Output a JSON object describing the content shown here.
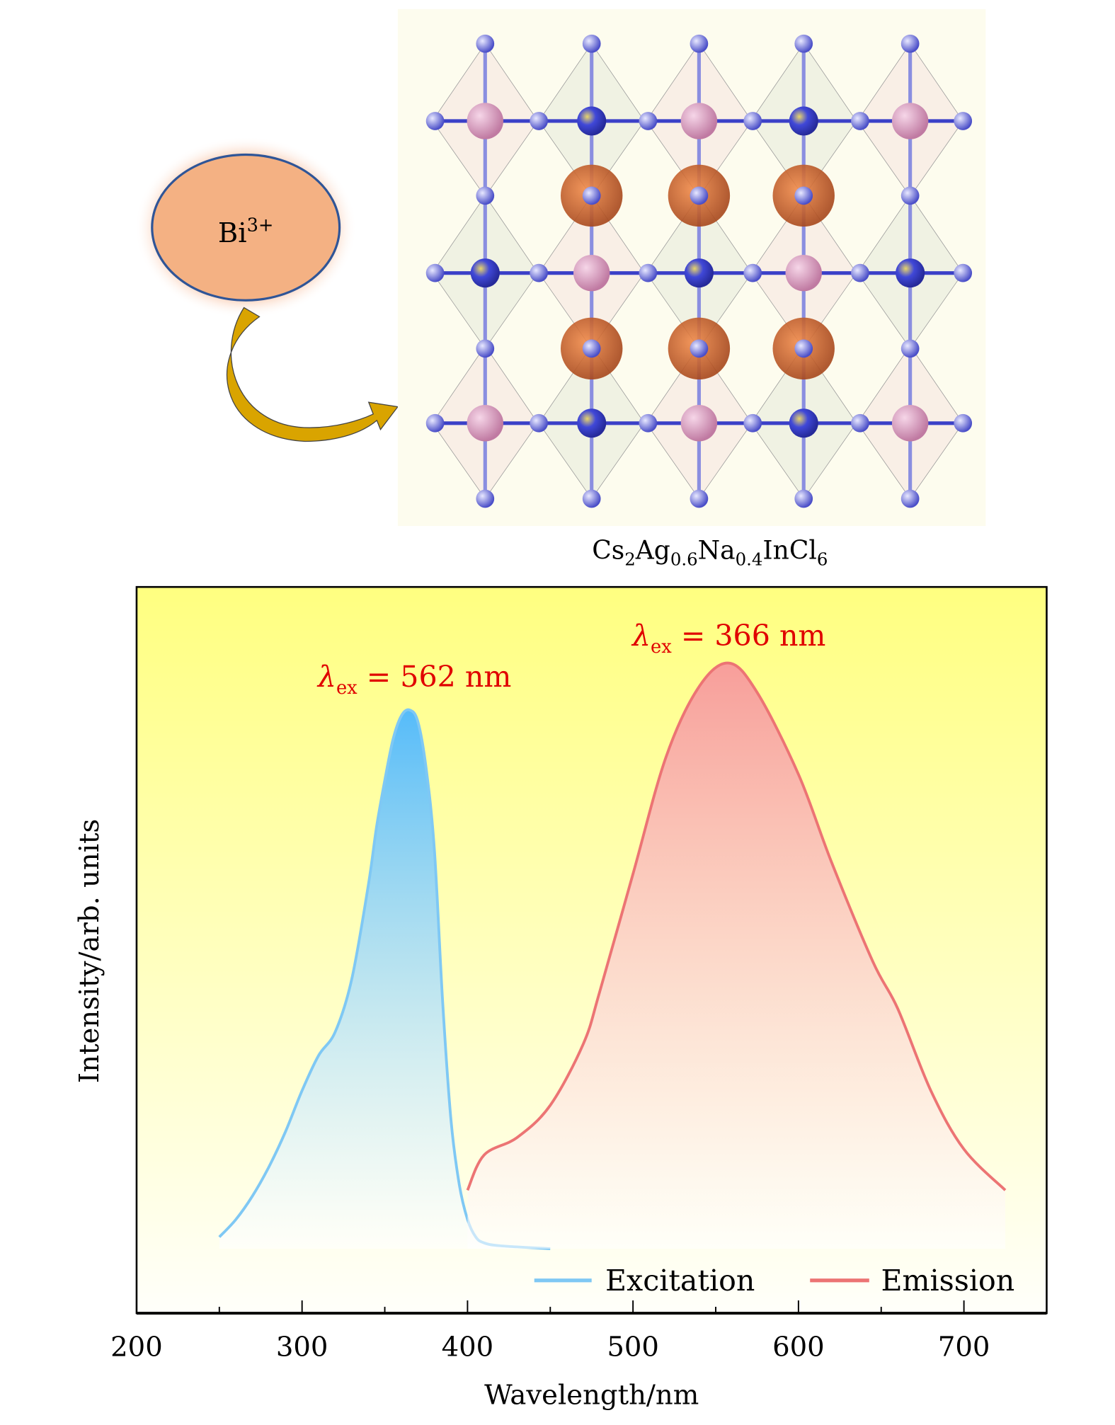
{
  "schematic": {
    "ion_label": {
      "base": "Bi",
      "sup": "3+"
    },
    "formula": [
      {
        "t": "Cs",
        "sub": false
      },
      {
        "t": "2",
        "sub": true
      },
      {
        "t": "Ag",
        "sub": false
      },
      {
        "t": "0.6",
        "sub": true
      },
      {
        "t": "Na",
        "sub": false
      },
      {
        "t": "0.4",
        "sub": true
      },
      {
        "t": "InCl",
        "sub": false
      },
      {
        "t": "6",
        "sub": true
      }
    ],
    "colors": {
      "ion_fill": "#f4b183",
      "ion_stroke": "#2f5597",
      "arrow": "#d9a400",
      "panel_bg": "#fdfcee",
      "cl_atom": "#6a6ee0",
      "in_atom": "#d68fb4",
      "cs_atom": "#d9652c",
      "ag_atom": "#3a3fd0"
    }
  },
  "chart_data": {
    "type": "area",
    "title": "",
    "xlabel": "Wavelength/nm",
    "ylabel": "Intensity/arb. units",
    "xlim": [
      200,
      750
    ],
    "ylim": [
      -0.11,
      1.13
    ],
    "xticks": [
      200,
      300,
      400,
      500,
      600,
      700
    ],
    "xtick_labels": [
      "200",
      "300",
      "400",
      "500",
      "600",
      "700"
    ],
    "minor_xticks": [
      250,
      350,
      450,
      550,
      650
    ],
    "yticks_shown": false,
    "grid": false,
    "legend": {
      "placement": "bottom-right",
      "entries": [
        "Excitation",
        "Emission"
      ]
    },
    "series": [
      {
        "name": "Excitation",
        "color": "#7fc8f4",
        "fill_top": "#4db8ff",
        "x": [
          250,
          260,
          270,
          280,
          290,
          300,
          310,
          320,
          330,
          340,
          345,
          350,
          355,
          360,
          365,
          370,
          375,
          380,
          385,
          390,
          395,
          400,
          405,
          410,
          420,
          450
        ],
        "y": [
          0.02,
          0.05,
          0.09,
          0.14,
          0.2,
          0.27,
          0.33,
          0.37,
          0.46,
          0.62,
          0.72,
          0.8,
          0.87,
          0.91,
          0.92,
          0.9,
          0.82,
          0.68,
          0.42,
          0.22,
          0.11,
          0.05,
          0.02,
          0.01,
          0.005,
          0.0
        ]
      },
      {
        "name": "Emission",
        "color": "#ec7474",
        "fill_top": "#f7999b",
        "x": [
          400,
          410,
          430,
          450,
          470,
          480,
          500,
          520,
          540,
          558,
          575,
          600,
          620,
          645,
          660,
          680,
          700,
          725
        ],
        "y": [
          0.1,
          0.16,
          0.19,
          0.245,
          0.35,
          0.44,
          0.64,
          0.84,
          0.96,
          1.0,
          0.95,
          0.81,
          0.66,
          0.49,
          0.41,
          0.27,
          0.17,
          0.1
        ]
      }
    ],
    "annotations": [
      {
        "symbol": "λ",
        "sub": "ex",
        "text": "= 562 nm",
        "x": 368,
        "y": 0.96,
        "color": "#e00000"
      },
      {
        "symbol": "λ",
        "sub": "ex",
        "text": "= 366 nm",
        "x": 558,
        "y": 1.03,
        "color": "#e00000"
      }
    ],
    "background": {
      "top": "#ffff80",
      "bottom": "#fffffa"
    }
  }
}
